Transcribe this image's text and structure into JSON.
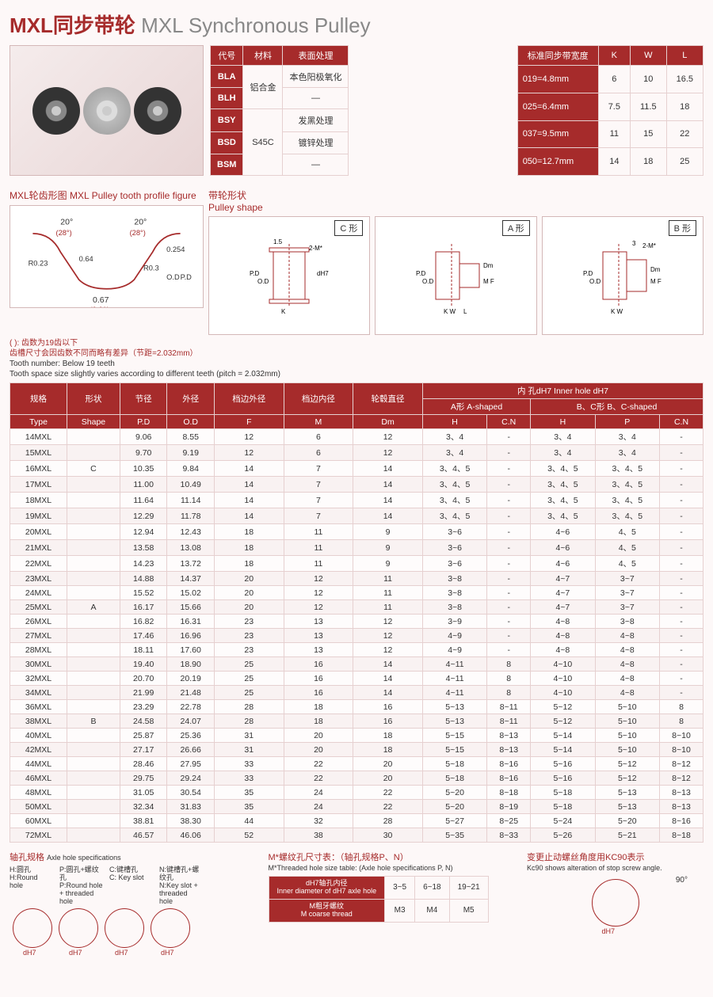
{
  "title": {
    "cn": "MXL同步带轮",
    "en": "MXL Synchronous Pulley"
  },
  "mat_table": {
    "headers": [
      "代号",
      "材料",
      "表面处理"
    ],
    "rows": [
      [
        "BLA",
        "铝合金",
        "本色阳极氧化"
      ],
      [
        "BLH",
        "",
        "—"
      ],
      [
        "BSY",
        "",
        "发黑处理"
      ],
      [
        "BSD",
        "S45C",
        "镀锌处理"
      ],
      [
        "BSM",
        "",
        "—"
      ]
    ]
  },
  "width_table": {
    "headers": [
      "标准同步带宽度",
      "K",
      "W",
      "L"
    ],
    "rows": [
      [
        "019=4.8mm",
        "6",
        "10",
        "16.5"
      ],
      [
        "025=6.4mm",
        "7.5",
        "11.5",
        "18"
      ],
      [
        "037=9.5mm",
        "11",
        "15",
        "22"
      ],
      [
        "050=12.7mm",
        "14",
        "18",
        "25"
      ]
    ]
  },
  "tooth_title": "MXL轮齿形图 MXL Pulley tooth profile figure",
  "shape_title": {
    "cn": "带轮形状",
    "en": "Pulley shape"
  },
  "shape_labels": [
    "C 形",
    "A 形",
    "B 形"
  ],
  "note1": "( ): 齿数为19齿以下",
  "note2": "齿槽尺寸会因齿数不同而略有差异（节距=2.032mm）",
  "note3": "Tooth number: Below 19 teeth",
  "note4": "Tooth space size slightly varies according to different teeth (pitch = 2.032mm)",
  "main_headers": {
    "r1": [
      "规格",
      "形状",
      "节径",
      "外径",
      "档边外径",
      "档边内径",
      "轮毂直径",
      "内 孔dH7   Inner hole dH7"
    ],
    "r2a": "A形  A-shaped",
    "r2b": "B、C形  B、C-shaped",
    "r3": [
      "Type",
      "Shape",
      "P.D",
      "O.D",
      "F",
      "M",
      "Dm",
      "H",
      "C.N",
      "H",
      "P",
      "C.N"
    ]
  },
  "main_rows": [
    [
      "14MXL",
      "",
      "9.06",
      "8.55",
      "12",
      "6",
      "12",
      "3、4",
      "-",
      "3、4",
      "3、4",
      "-"
    ],
    [
      "15MXL",
      "",
      "9.70",
      "9.19",
      "12",
      "6",
      "12",
      "3、4",
      "-",
      "3、4",
      "3、4",
      "-"
    ],
    [
      "16MXL",
      "C",
      "10.35",
      "9.84",
      "14",
      "7",
      "14",
      "3、4、5",
      "-",
      "3、4、5",
      "3、4、5",
      "-"
    ],
    [
      "17MXL",
      "",
      "11.00",
      "10.49",
      "14",
      "7",
      "14",
      "3、4、5",
      "-",
      "3、4、5",
      "3、4、5",
      "-"
    ],
    [
      "18MXL",
      "",
      "11.64",
      "11.14",
      "14",
      "7",
      "14",
      "3、4、5",
      "-",
      "3、4、5",
      "3、4、5",
      "-"
    ],
    [
      "19MXL",
      "",
      "12.29",
      "11.78",
      "14",
      "7",
      "14",
      "3、4、5",
      "-",
      "3、4、5",
      "3、4、5",
      "-"
    ],
    [
      "20MXL",
      "",
      "12.94",
      "12.43",
      "18",
      "11",
      "9",
      "3~6",
      "-",
      "4~6",
      "4、5",
      "-"
    ],
    [
      "21MXL",
      "",
      "13.58",
      "13.08",
      "18",
      "11",
      "9",
      "3~6",
      "-",
      "4~6",
      "4、5",
      "-"
    ],
    [
      "22MXL",
      "",
      "14.23",
      "13.72",
      "18",
      "11",
      "9",
      "3~6",
      "-",
      "4~6",
      "4、5",
      "-"
    ],
    [
      "23MXL",
      "",
      "14.88",
      "14.37",
      "20",
      "12",
      "11",
      "3~8",
      "-",
      "4~7",
      "3~7",
      "-"
    ],
    [
      "24MXL",
      "",
      "15.52",
      "15.02",
      "20",
      "12",
      "11",
      "3~8",
      "-",
      "4~7",
      "3~7",
      "-"
    ],
    [
      "25MXL",
      "A",
      "16.17",
      "15.66",
      "20",
      "12",
      "11",
      "3~8",
      "-",
      "4~7",
      "3~7",
      "-"
    ],
    [
      "26MXL",
      "",
      "16.82",
      "16.31",
      "23",
      "13",
      "12",
      "3~9",
      "-",
      "4~8",
      "3~8",
      "-"
    ],
    [
      "27MXL",
      "",
      "17.46",
      "16.96",
      "23",
      "13",
      "12",
      "4~9",
      "-",
      "4~8",
      "4~8",
      "-"
    ],
    [
      "28MXL",
      "",
      "18.11",
      "17.60",
      "23",
      "13",
      "12",
      "4~9",
      "-",
      "4~8",
      "4~8",
      "-"
    ],
    [
      "30MXL",
      "",
      "19.40",
      "18.90",
      "25",
      "16",
      "14",
      "4~11",
      "8",
      "4~10",
      "4~8",
      "-"
    ],
    [
      "32MXL",
      "",
      "20.70",
      "20.19",
      "25",
      "16",
      "14",
      "4~11",
      "8",
      "4~10",
      "4~8",
      "-"
    ],
    [
      "34MXL",
      "",
      "21.99",
      "21.48",
      "25",
      "16",
      "14",
      "4~11",
      "8",
      "4~10",
      "4~8",
      "-"
    ],
    [
      "36MXL",
      "",
      "23.29",
      "22.78",
      "28",
      "18",
      "16",
      "5~13",
      "8~11",
      "5~12",
      "5~10",
      "8"
    ],
    [
      "38MXL",
      "B",
      "24.58",
      "24.07",
      "28",
      "18",
      "16",
      "5~13",
      "8~11",
      "5~12",
      "5~10",
      "8"
    ],
    [
      "40MXL",
      "",
      "25.87",
      "25.36",
      "31",
      "20",
      "18",
      "5~15",
      "8~13",
      "5~14",
      "5~10",
      "8~10"
    ],
    [
      "42MXL",
      "",
      "27.17",
      "26.66",
      "31",
      "20",
      "18",
      "5~15",
      "8~13",
      "5~14",
      "5~10",
      "8~10"
    ],
    [
      "44MXL",
      "",
      "28.46",
      "27.95",
      "33",
      "22",
      "20",
      "5~18",
      "8~16",
      "5~16",
      "5~12",
      "8~12"
    ],
    [
      "46MXL",
      "",
      "29.75",
      "29.24",
      "33",
      "22",
      "20",
      "5~18",
      "8~16",
      "5~16",
      "5~12",
      "8~12"
    ],
    [
      "48MXL",
      "",
      "31.05",
      "30.54",
      "35",
      "24",
      "22",
      "5~20",
      "8~18",
      "5~18",
      "5~13",
      "8~13"
    ],
    [
      "50MXL",
      "",
      "32.34",
      "31.83",
      "35",
      "24",
      "22",
      "5~20",
      "8~19",
      "5~18",
      "5~13",
      "8~13"
    ],
    [
      "60MXL",
      "",
      "38.81",
      "38.30",
      "44",
      "32",
      "28",
      "5~27",
      "8~25",
      "5~24",
      "5~20",
      "8~16"
    ],
    [
      "72MXL",
      "",
      "46.57",
      "46.06",
      "52",
      "38",
      "30",
      "5~35",
      "8~33",
      "5~26",
      "5~21",
      "8~18"
    ]
  ],
  "axle": {
    "title": "轴孔规格",
    "title_en": "Axle hole specifications",
    "labels": [
      {
        "h": "H:圆孔",
        "e": "H:Round hole"
      },
      {
        "h": "P:圆孔+螺纹孔",
        "e": "P:Round hole + threaded hole"
      },
      {
        "h": "C:键槽孔",
        "e": "C: Key slot"
      },
      {
        "h": "N:键槽孔+螺纹孔",
        "e": "N:Key slot + threaded hole"
      }
    ]
  },
  "thread": {
    "title": "M*螺纹孔尺寸表：（轴孔规格P、N）",
    "title_en": "M*Threaded hole size table: (Axle hole specifications P, N)",
    "h1": "dH7轴孔内径",
    "h1e": "Inner diameter of dH7 axle hole",
    "h2": "M粗牙螺纹",
    "h2e": "M coarse thread",
    "cols": [
      "3~5",
      "6~18",
      "19~21"
    ],
    "vals": [
      "M3",
      "M4",
      "M5"
    ]
  },
  "kc90": {
    "title": "变更止动螺丝角度用KC90表示",
    "title_en": "Kc90 shows alteration of stop screw angle.",
    "angle": "90°"
  }
}
